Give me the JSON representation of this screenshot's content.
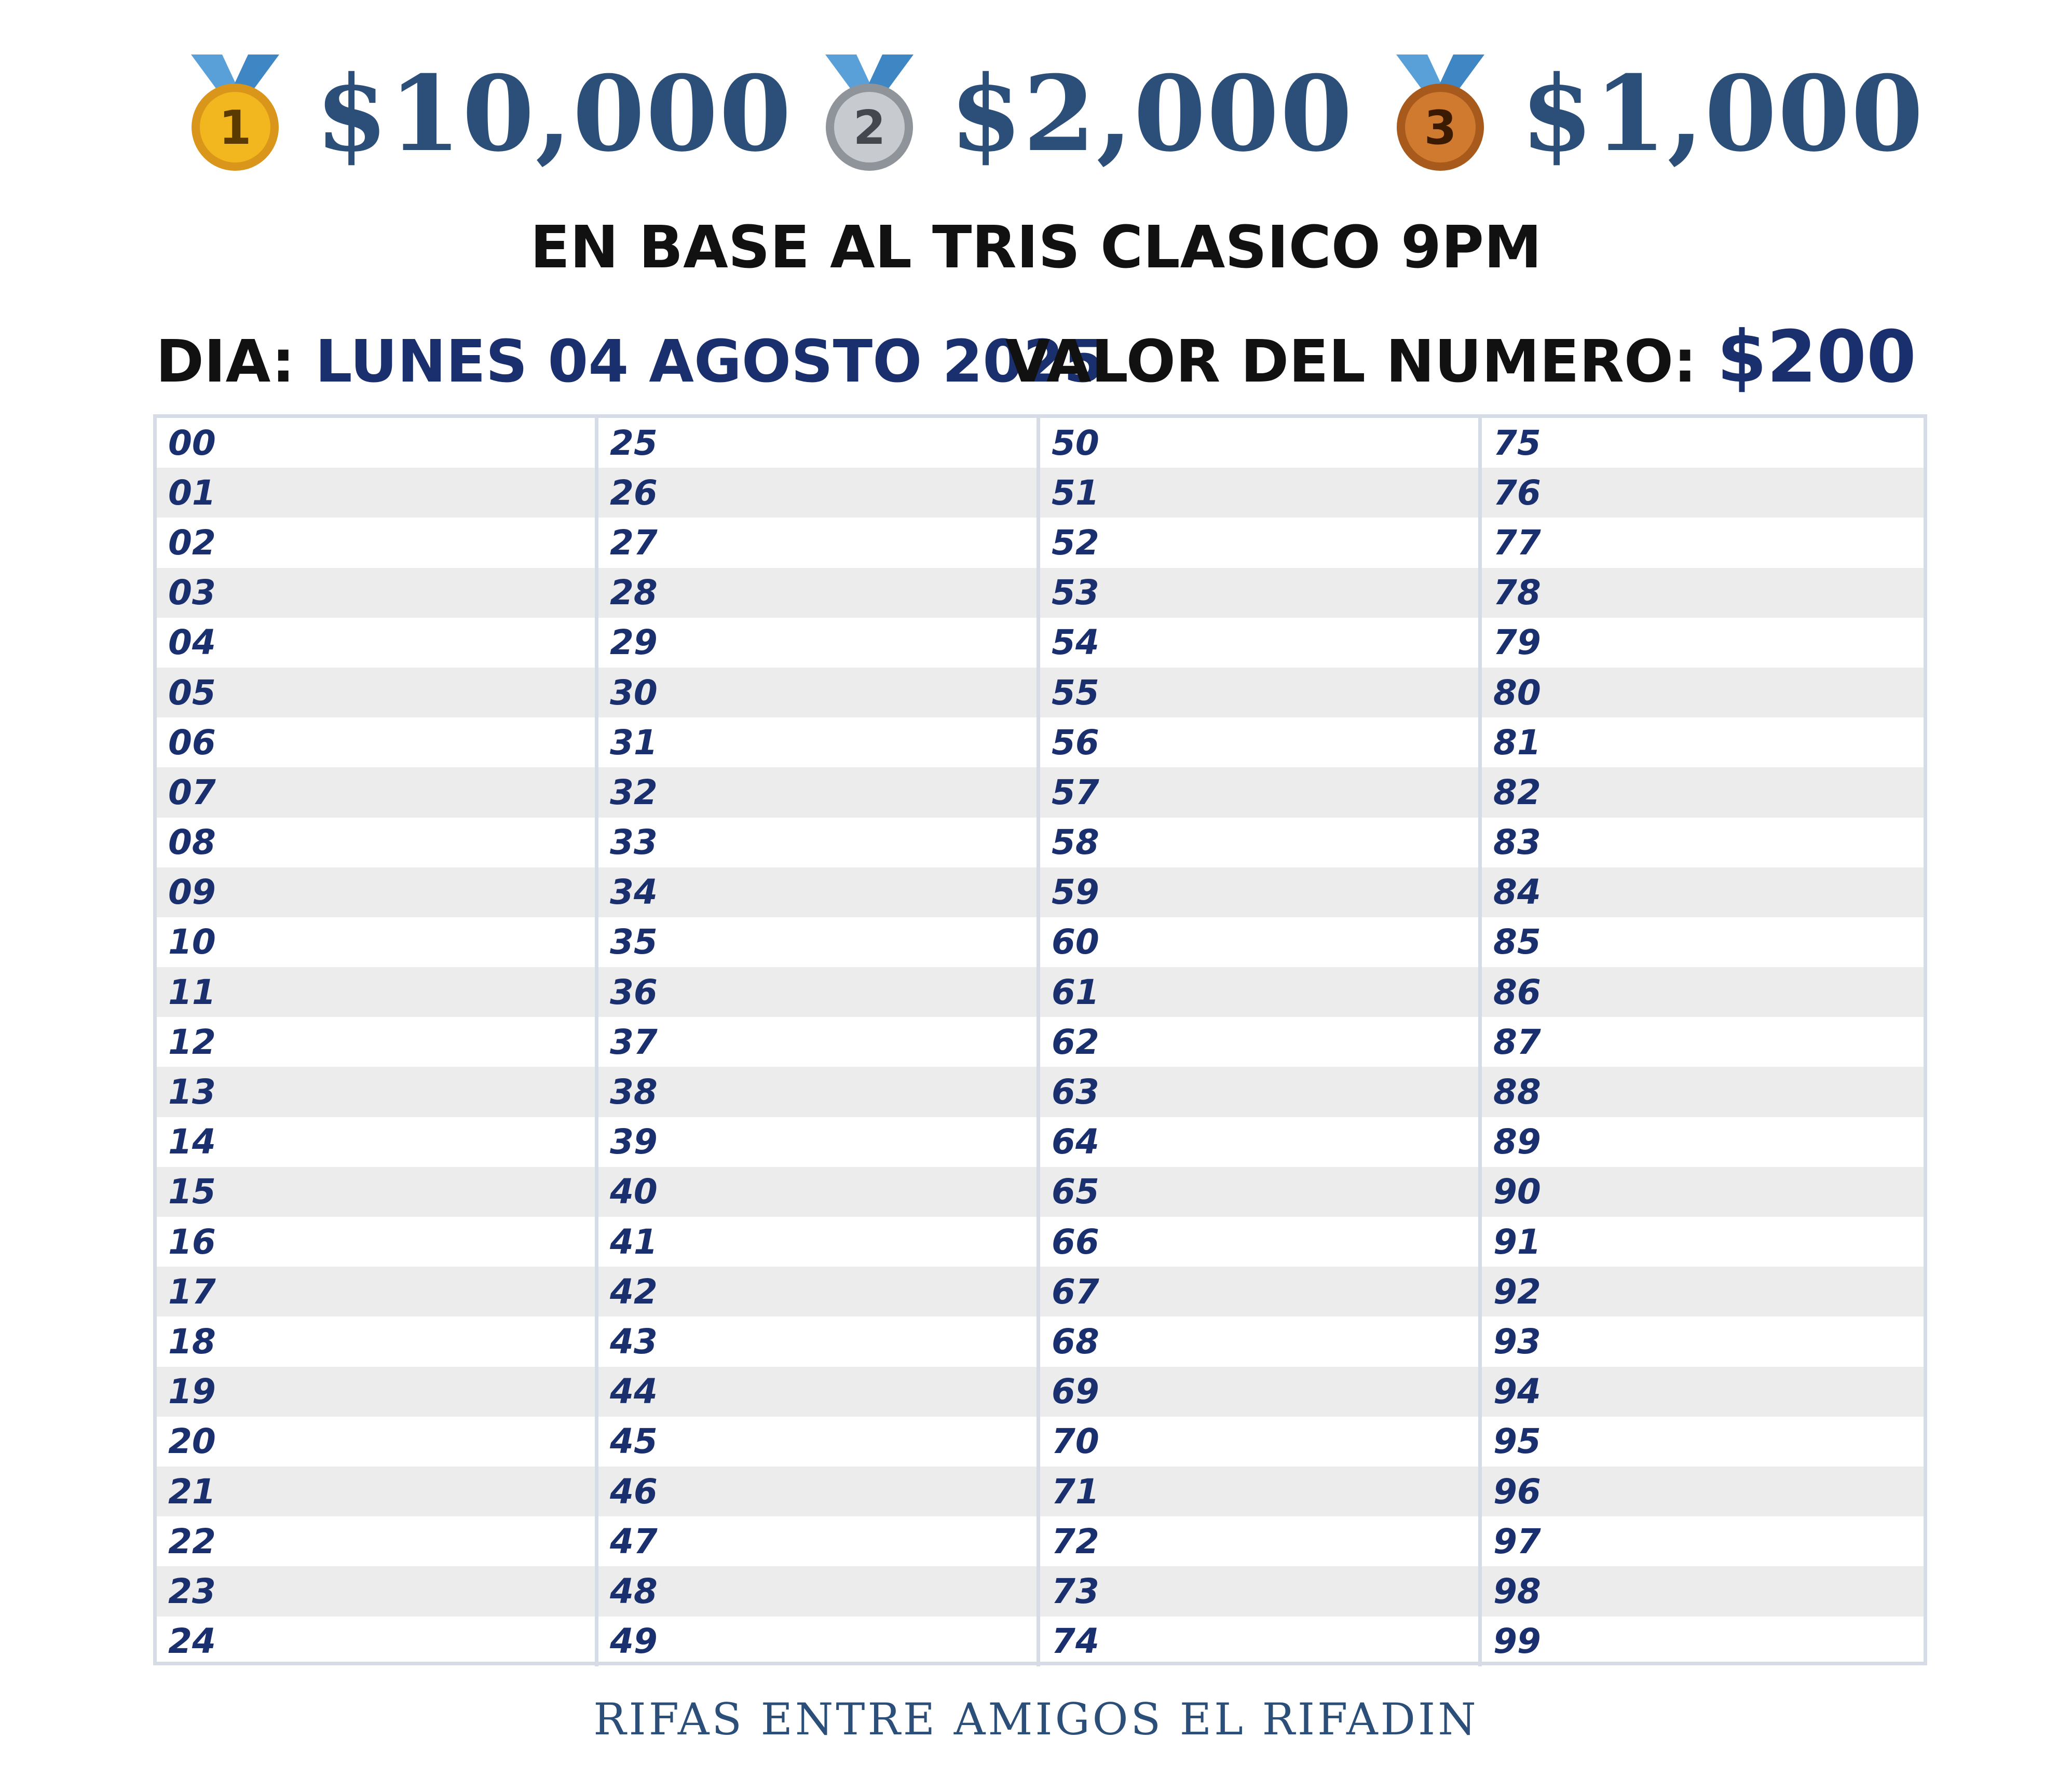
{
  "prizes": [
    {
      "rank": "1",
      "amount": "$10,000",
      "medal": "gold-medal-icon"
    },
    {
      "rank": "2",
      "amount": "$2,000",
      "medal": "silver-medal-icon"
    },
    {
      "rank": "3",
      "amount": "$1,000",
      "medal": "bronze-medal-icon"
    }
  ],
  "colors": {
    "ribbon": "#5aa0d8",
    "gold": "#f2b61f",
    "silver": "#b8bcc2",
    "bronze": "#d07a30",
    "amount": "#2c4f79",
    "accent": "#1a2f6e",
    "row_alt": "#ececec",
    "border": "#d5dce6"
  },
  "subtitle": "EN BASE AL TRIS CLASICO 9PM",
  "day": {
    "label": "DIA:",
    "value": "LUNES 04 AGOSTO 2025"
  },
  "price": {
    "label": "VALOR DEL NUMERO:",
    "value": "$200"
  },
  "numbers": {
    "columns": [
      [
        "00",
        "01",
        "02",
        "03",
        "04",
        "05",
        "06",
        "07",
        "08",
        "09",
        "10",
        "11",
        "12",
        "13",
        "14",
        "15",
        "16",
        "17",
        "18",
        "19",
        "20",
        "21",
        "22",
        "23",
        "24"
      ],
      [
        "25",
        "26",
        "27",
        "28",
        "29",
        "30",
        "31",
        "32",
        "33",
        "34",
        "35",
        "36",
        "37",
        "38",
        "39",
        "40",
        "41",
        "42",
        "43",
        "44",
        "45",
        "46",
        "47",
        "48",
        "49"
      ],
      [
        "50",
        "51",
        "52",
        "53",
        "54",
        "55",
        "56",
        "57",
        "58",
        "59",
        "60",
        "61",
        "62",
        "63",
        "64",
        "65",
        "66",
        "67",
        "68",
        "69",
        "70",
        "71",
        "72",
        "73",
        "74"
      ],
      [
        "75",
        "76",
        "77",
        "78",
        "79",
        "80",
        "81",
        "82",
        "83",
        "84",
        "85",
        "86",
        "87",
        "88",
        "89",
        "90",
        "91",
        "92",
        "93",
        "94",
        "95",
        "96",
        "97",
        "98",
        "99"
      ]
    ]
  },
  "footer": "RIFAS ENTRE AMIGOS EL RIFADIN"
}
